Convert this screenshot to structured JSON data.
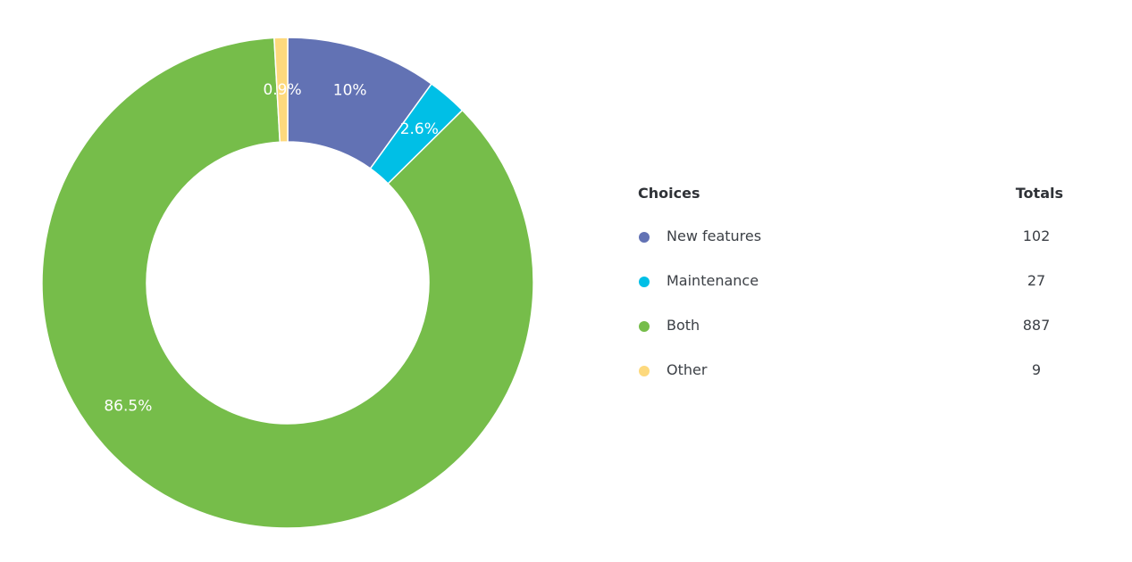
{
  "chart_data": {
    "type": "pie",
    "donut": true,
    "categories": [
      "New features",
      "Maintenance",
      "Both",
      "Other"
    ],
    "values": [
      102,
      27,
      887,
      9
    ],
    "percent_labels": [
      "10%",
      "2.6%",
      "86.5%",
      "0.9%"
    ],
    "colors": [
      "#6272b4",
      "#00bfe6",
      "#76bd4a",
      "#fdd97d"
    ],
    "legend": {
      "placement": "right",
      "header_choices": "Choices",
      "header_totals": "Totals"
    }
  }
}
